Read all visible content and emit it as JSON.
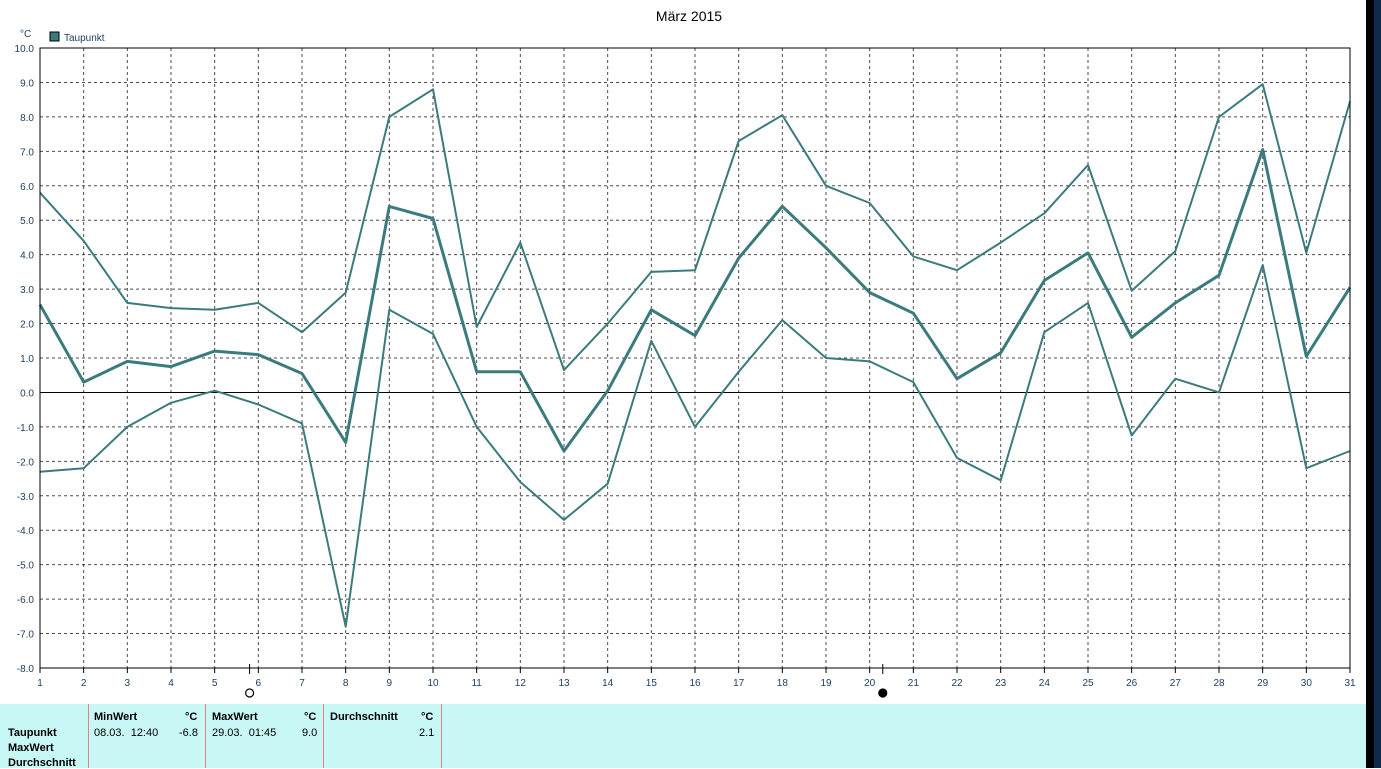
{
  "chart_data": {
    "type": "line",
    "title": "März 2015",
    "unit_label": "°C",
    "legend": [
      "Taupunkt"
    ],
    "legend_position": "top-left",
    "grid": true,
    "xlim": [
      1,
      31
    ],
    "ylim": [
      -8,
      10
    ],
    "x": [
      1,
      2,
      3,
      4,
      5,
      6,
      7,
      8,
      9,
      10,
      11,
      12,
      13,
      14,
      15,
      16,
      17,
      18,
      19,
      20,
      21,
      22,
      23,
      24,
      25,
      26,
      27,
      28,
      29,
      30,
      31
    ],
    "x_ticks": [
      "1",
      "2",
      "3",
      "4",
      "5",
      "6",
      "7",
      "8",
      "9",
      "10",
      "11",
      "12",
      "13",
      "14",
      "15",
      "16",
      "17",
      "18",
      "19",
      "20",
      "21",
      "22",
      "23",
      "24",
      "25",
      "26",
      "27",
      "28",
      "29",
      "30",
      "31"
    ],
    "y_ticks": [
      "10.0",
      "9.0",
      "8.0",
      "7.0",
      "6.0",
      "5.0",
      "4.0",
      "3.0",
      "2.0",
      "1.0",
      "0.0",
      "-1.0",
      "-2.0",
      "-3.0",
      "-4.0",
      "-5.0",
      "-6.0",
      "-7.0",
      "-8.0"
    ],
    "y_tick_values": [
      10,
      9,
      8,
      7,
      6,
      5,
      4,
      3,
      2,
      1,
      0,
      -1,
      -2,
      -3,
      -4,
      -5,
      -6,
      -7,
      -8
    ],
    "series": [
      {
        "role": "max",
        "values": [
          5.8,
          4.4,
          2.6,
          2.45,
          2.4,
          2.6,
          1.75,
          2.9,
          8.0,
          8.8,
          1.9,
          4.35,
          0.65,
          2.0,
          3.5,
          3.55,
          7.3,
          8.05,
          6.0,
          5.5,
          3.95,
          3.55,
          4.35,
          5.2,
          6.6,
          2.95,
          4.1,
          8.0,
          8.95,
          4.05,
          8.45
        ]
      },
      {
        "role": "avg",
        "values": [
          2.55,
          0.3,
          0.9,
          0.75,
          1.2,
          1.1,
          0.55,
          -1.45,
          5.4,
          5.05,
          0.6,
          0.6,
          -1.7,
          0.05,
          2.4,
          1.65,
          3.9,
          5.4,
          4.2,
          2.9,
          2.3,
          0.4,
          1.15,
          3.25,
          4.05,
          1.6,
          2.6,
          3.4,
          7.05,
          1.05,
          3.05
        ]
      },
      {
        "role": "min",
        "values": [
          -2.3,
          -2.2,
          -1.0,
          -0.3,
          0.05,
          -0.35,
          -0.9,
          -6.8,
          2.4,
          1.7,
          -1.0,
          -2.6,
          -3.7,
          -2.65,
          1.5,
          -1.0,
          0.6,
          2.1,
          1.0,
          0.9,
          0.3,
          -1.9,
          -2.55,
          1.75,
          2.6,
          -1.25,
          0.4,
          0.0,
          3.7,
          -2.2,
          -1.7
        ]
      }
    ],
    "line_color": "#3b7b7d",
    "moon_phases": [
      {
        "day": 5.8,
        "phase": "full-moon-open-circle"
      },
      {
        "day": 20.3,
        "phase": "new-moon-filled-circle"
      }
    ]
  },
  "stats": {
    "row_labels": [
      "Taupunkt",
      "MaxWert",
      "Durchschnitt"
    ],
    "min": {
      "header": "MinWert",
      "unit": "°C",
      "datetime": "08.03.  12:40",
      "value": "-6.8"
    },
    "max": {
      "header": "MaxWert",
      "unit": "°C",
      "datetime": "29.03.  01:45",
      "value": "9.0"
    },
    "avg": {
      "header": "Durchschnitt",
      "unit": "°C",
      "value": "2.1"
    }
  }
}
